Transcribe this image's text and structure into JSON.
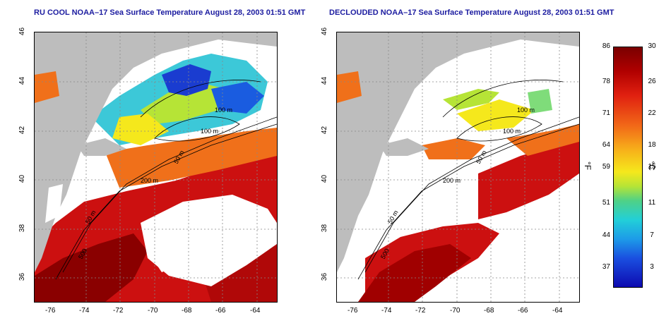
{
  "panels": [
    {
      "title": "RU COOL NOAA–17 Sea Surface Temperature August 28, 2003 01:51 GMT"
    },
    {
      "title": "DECLOUDED NOAA–17 Sea Surface Temperature August 28, 2003 01:51 GMT"
    }
  ],
  "x_ticks": [
    "-76",
    "-74",
    "-72",
    "-70",
    "-68",
    "-66",
    "-64"
  ],
  "y_ticks": [
    "46",
    "44",
    "42",
    "40",
    "38",
    "36"
  ],
  "contour_labels": {
    "m100a": "100 m",
    "m100b": "100 m",
    "m50a": "50 m",
    "m200": "200 m",
    "m50b": "50 m",
    "m500": "500"
  },
  "colorbar": {
    "fahrenheit": [
      "86",
      "78",
      "71",
      "64",
      "59",
      "51",
      "44",
      "37"
    ],
    "celsius": [
      "30",
      "26",
      "22",
      "18",
      "15",
      "11",
      "7",
      "3"
    ],
    "unit_f": "°F",
    "unit_c": "°C"
  },
  "colors": {
    "land": "#bdbdbd",
    "cloud": "#ffffff",
    "warm": "#cc1010",
    "hot": "#8a0000",
    "mid": "#f28a1a",
    "cool": "#3cc8d8",
    "cold": "#1a3cd0",
    "title": "#1c1ca0"
  }
}
